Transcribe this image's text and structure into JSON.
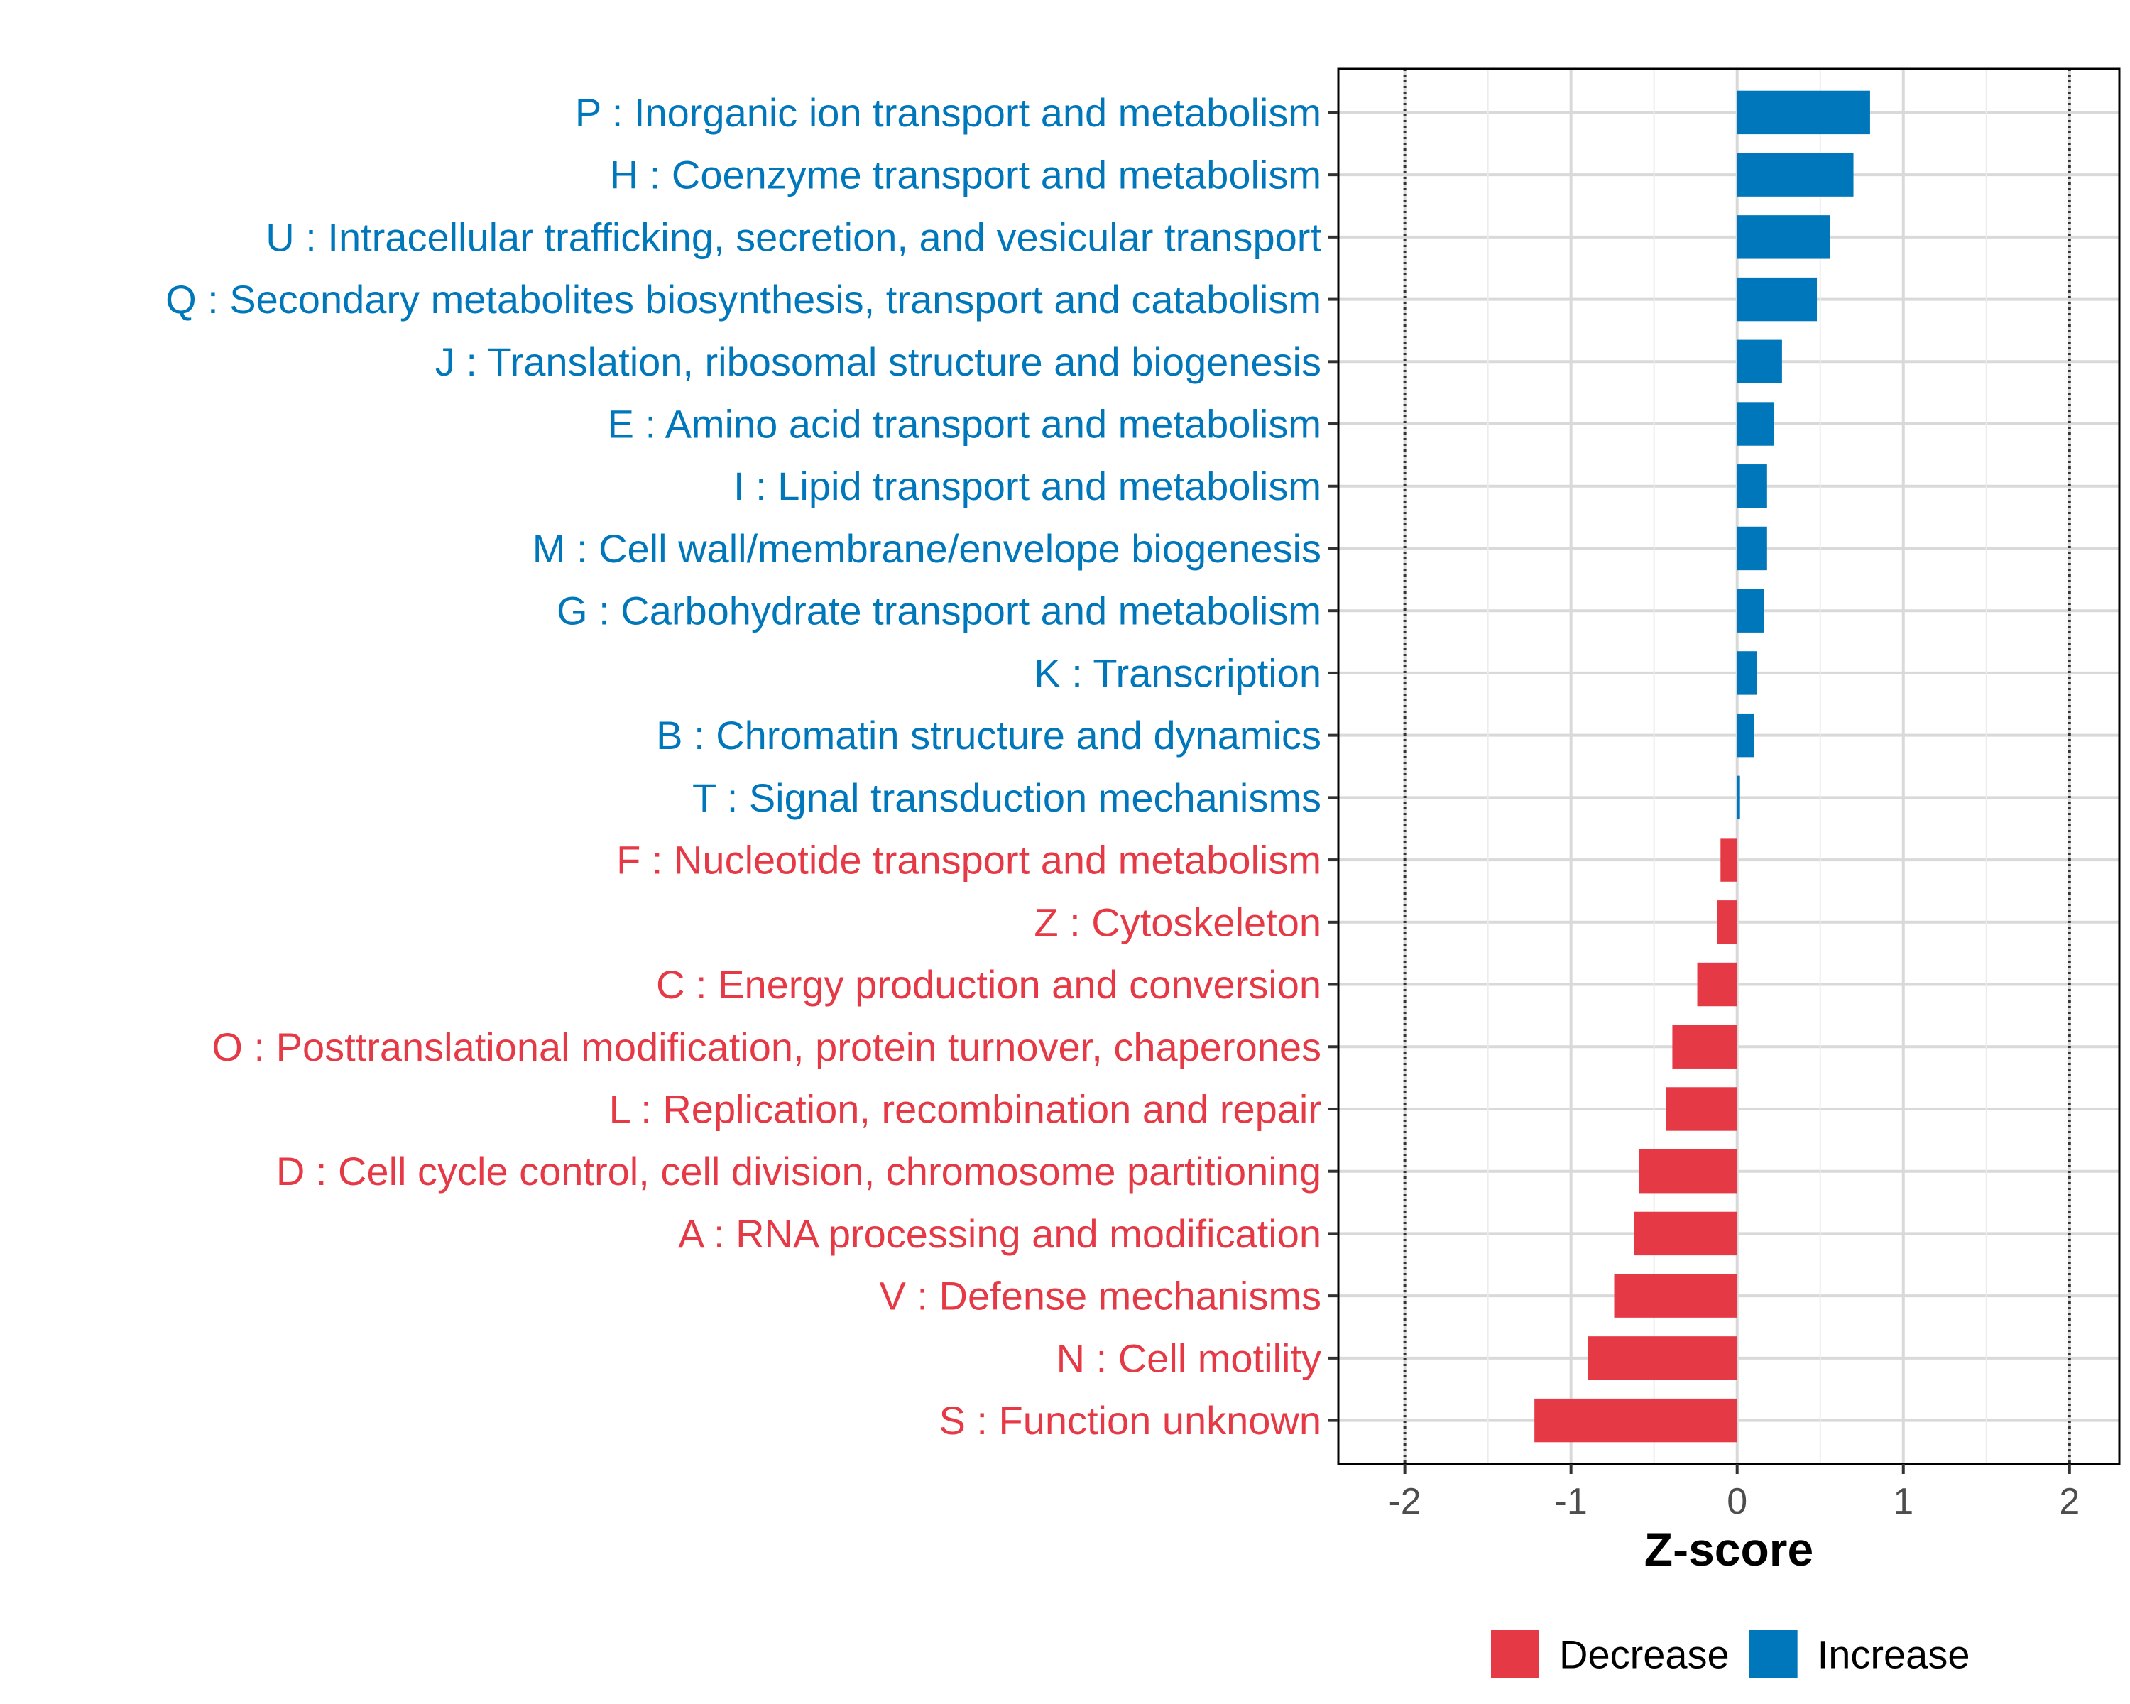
{
  "chart_data": {
    "type": "bar",
    "orientation": "horizontal",
    "title": "",
    "xlabel": "Z-score",
    "ylabel": "",
    "xlim": [
      -2.4,
      2.3
    ],
    "xticks": [
      -2,
      -1,
      0,
      1,
      2
    ],
    "xtick_labels": [
      "-2",
      "-1",
      "0",
      "1",
      "2"
    ],
    "reference_lines": [
      -2,
      2
    ],
    "grid": true,
    "legend_position": "bottom",
    "legend": [
      {
        "label": "Decrease",
        "color": "#E63946"
      },
      {
        "label": "Increase",
        "color": "#0077BB"
      }
    ],
    "colors": {
      "Increase": "#0077BB",
      "Decrease": "#E63946"
    },
    "categories": [
      "P : Inorganic ion transport and metabolism",
      "H : Coenzyme transport and metabolism",
      "U : Intracellular trafficking, secretion, and vesicular transport",
      "Q : Secondary metabolites biosynthesis, transport and catabolism",
      "J : Translation, ribosomal structure and biogenesis",
      "E : Amino acid transport and metabolism",
      "I : Lipid transport and metabolism",
      "M : Cell wall/membrane/envelope biogenesis",
      "G : Carbohydrate transport and metabolism",
      "K : Transcription",
      "B : Chromatin structure and dynamics",
      "T : Signal transduction mechanisms",
      "F : Nucleotide transport and metabolism",
      "Z : Cytoskeleton",
      "C : Energy production and conversion",
      "O : Posttranslational modification, protein turnover, chaperones",
      "L : Replication, recombination and repair",
      "D : Cell cycle control, cell division, chromosome partitioning",
      "A : RNA processing and modification",
      "V : Defense mechanisms",
      "N : Cell motility",
      "S : Function unknown"
    ],
    "values": [
      0.8,
      0.7,
      0.56,
      0.48,
      0.27,
      0.22,
      0.18,
      0.18,
      0.16,
      0.12,
      0.1,
      0.01,
      -0.1,
      -0.12,
      -0.24,
      -0.39,
      -0.43,
      -0.59,
      -0.62,
      -0.74,
      -0.9,
      -1.22
    ],
    "groups": [
      "Increase",
      "Increase",
      "Increase",
      "Increase",
      "Increase",
      "Increase",
      "Increase",
      "Increase",
      "Increase",
      "Increase",
      "Increase",
      "Increase",
      "Decrease",
      "Decrease",
      "Decrease",
      "Decrease",
      "Decrease",
      "Decrease",
      "Decrease",
      "Decrease",
      "Decrease",
      "Decrease"
    ]
  }
}
